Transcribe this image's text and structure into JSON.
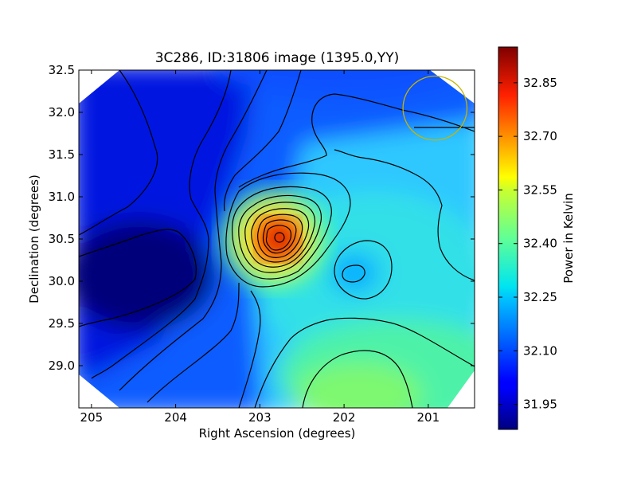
{
  "chart_data": {
    "type": "heatmap",
    "title": "3C286, ID:31806 image (1395.0,YY)",
    "xlabel": "Right Ascension (degrees)",
    "ylabel": "Declination (degrees)",
    "xlim": [
      205.15,
      200.45
    ],
    "ylim": [
      28.5,
      32.5
    ],
    "x_ticks": [
      205,
      204,
      203,
      202,
      201
    ],
    "y_ticks": [
      29.0,
      29.5,
      30.0,
      30.5,
      31.0,
      31.5,
      32.0,
      32.5
    ],
    "x_tick_labels": [
      "205",
      "204",
      "203",
      "202",
      "201"
    ],
    "y_tick_labels": [
      "29.0",
      "29.5",
      "30.0",
      "30.5",
      "31.0",
      "31.5",
      "32.0",
      "32.5"
    ],
    "colorbar": {
      "label": "Power in Kelvin",
      "range": [
        31.88,
        32.95
      ],
      "ticks": [
        31.95,
        32.1,
        32.25,
        32.4,
        32.55,
        32.7,
        32.85
      ],
      "tick_labels": [
        "31.95",
        "32.10",
        "32.25",
        "32.40",
        "32.55",
        "32.70",
        "32.85"
      ],
      "colormap": "jet"
    },
    "field": {
      "base_level": 32.0,
      "gradient": [
        {
          "ra": 205.1,
          "dec": 30.05,
          "value": 31.9
        },
        {
          "ra": 204.0,
          "dec": 32.3,
          "value": 32.05
        },
        {
          "ra": 201.5,
          "dec": 31.0,
          "value": 32.25
        },
        {
          "ra": 201.8,
          "dec": 28.7,
          "value": 32.45
        }
      ],
      "features": [
        {
          "kind": "peak",
          "ra": 202.73,
          "dec": 30.51,
          "value": 32.95
        },
        {
          "kind": "local_minimum",
          "ra": 201.88,
          "dec": 30.08,
          "value": 32.12
        },
        {
          "kind": "minimum",
          "ra": 204.2,
          "dec": 30.05,
          "value": 31.88
        }
      ]
    },
    "beam_circle": {
      "ra": 200.92,
      "dec": 32.05,
      "radius_deg": 0.38,
      "color": "#c8b400"
    },
    "contour_color": "#000000",
    "grid": false,
    "legend": "none"
  }
}
